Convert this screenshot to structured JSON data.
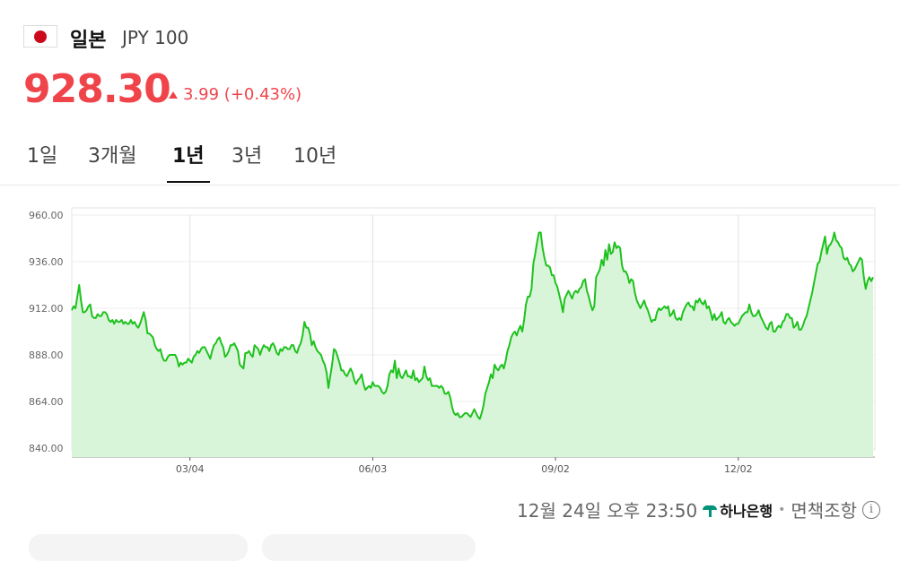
{
  "header": {
    "country": "일본",
    "code": "JPY 100",
    "flag_icon": "japan-flag-icon",
    "price": "928.30",
    "change": "3.99 (+0.43%)",
    "change_direction": "up",
    "up_color": "#f0444b"
  },
  "tabs": [
    {
      "label": "1일",
      "active": false
    },
    {
      "label": "3개월",
      "active": false
    },
    {
      "label": "1년",
      "active": true
    },
    {
      "label": "3년",
      "active": false
    },
    {
      "label": "10년",
      "active": false
    }
  ],
  "footer": {
    "timestamp": "12월 24일 오후 23:50",
    "provider": "하나은행",
    "disclaimer": "면책조항"
  },
  "chart_data": {
    "type": "area",
    "line_color": "#1ec21e",
    "fill_color": "#d9f5d9",
    "ylim": [
      840,
      960
    ],
    "yticks": [
      "960.00",
      "936.00",
      "912.00",
      "888.00",
      "864.00",
      "840.00"
    ],
    "xticks": [
      "03/04",
      "06/03",
      "09/02",
      "12/02"
    ],
    "grid": true,
    "values": [
      911,
      913,
      912,
      918,
      924,
      916,
      910,
      910,
      911,
      913,
      914,
      908,
      907,
      907,
      909,
      908,
      908,
      910,
      910,
      909,
      906,
      905,
      906,
      904,
      906,
      905,
      905,
      906,
      904,
      905,
      904,
      904,
      906,
      904,
      905,
      903,
      902,
      904,
      907,
      910,
      906,
      899,
      899,
      898,
      897,
      893,
      891,
      890,
      891,
      887,
      885,
      885,
      887,
      888,
      888,
      888,
      888,
      886,
      882,
      884,
      883,
      884,
      884,
      886,
      885,
      884,
      887,
      888,
      890,
      889,
      891,
      892,
      892,
      890,
      888,
      886,
      890,
      893,
      894,
      896,
      897,
      894,
      892,
      887,
      888,
      890,
      893,
      893,
      894,
      892,
      890,
      883,
      882,
      881,
      889,
      889,
      890,
      888,
      887,
      893,
      892,
      891,
      888,
      891,
      893,
      892,
      892,
      890,
      893,
      894,
      892,
      889,
      888,
      891,
      890,
      892,
      892,
      891,
      891,
      893,
      893,
      890,
      889,
      892,
      894,
      898,
      905,
      902,
      902,
      899,
      893,
      895,
      892,
      890,
      889,
      888,
      885,
      883,
      879,
      871,
      877,
      883,
      891,
      890,
      887,
      884,
      880,
      880,
      878,
      877,
      879,
      881,
      879,
      875,
      873,
      875,
      876,
      878,
      873,
      870,
      871,
      872,
      871,
      874,
      872,
      872,
      872,
      871,
      869,
      868,
      869,
      872,
      878,
      880,
      879,
      885,
      876,
      881,
      877,
      876,
      878,
      880,
      877,
      877,
      876,
      880,
      875,
      876,
      874,
      875,
      876,
      882,
      877,
      875,
      876,
      872,
      872,
      872,
      872,
      871,
      872,
      871,
      868,
      868,
      869,
      866,
      861,
      858,
      857,
      858,
      856,
      856,
      857,
      858,
      858,
      857,
      856,
      858,
      860,
      858,
      856,
      855,
      858,
      862,
      868,
      871,
      874,
      878,
      876,
      883,
      881,
      880,
      882,
      883,
      881,
      885,
      890,
      893,
      897,
      899,
      900,
      898,
      901,
      903,
      900,
      906,
      914,
      918,
      918,
      922,
      935,
      940,
      946,
      951,
      951,
      943,
      938,
      934,
      934,
      933,
      929,
      929,
      925,
      923,
      919,
      915,
      910,
      917,
      919,
      921,
      919,
      917,
      920,
      921,
      920,
      922,
      923,
      926,
      927,
      921,
      918,
      914,
      911,
      913,
      928,
      930,
      932,
      937,
      934,
      942,
      937,
      945,
      940,
      941,
      946,
      943,
      944,
      943,
      934,
      931,
      931,
      929,
      925,
      927,
      926,
      920,
      916,
      914,
      912,
      914,
      916,
      913,
      911,
      908,
      905,
      906,
      906,
      910,
      912,
      911,
      912,
      913,
      912,
      913,
      908,
      909,
      911,
      907,
      906,
      907,
      906,
      910,
      912,
      914,
      915,
      913,
      913,
      911,
      916,
      915,
      917,
      915,
      914,
      916,
      912,
      913,
      910,
      906,
      909,
      906,
      907,
      908,
      910,
      905,
      904,
      906,
      907,
      905,
      904,
      903,
      904,
      904,
      906,
      908,
      909,
      910,
      910,
      914,
      910,
      908,
      908,
      909,
      911,
      908,
      906,
      904,
      902,
      901,
      904,
      905,
      900,
      900,
      902,
      903,
      902,
      905,
      906,
      909,
      909,
      907,
      907,
      902,
      903,
      905,
      901,
      901,
      903,
      906,
      908,
      912,
      916,
      920,
      925,
      930,
      935,
      936,
      941,
      945,
      949,
      940,
      944,
      945,
      947,
      951,
      947,
      946,
      944,
      943,
      938,
      937,
      938,
      935,
      934,
      931,
      932,
      934,
      936,
      938,
      937,
      928,
      922,
      926,
      928,
      926,
      928
    ]
  }
}
